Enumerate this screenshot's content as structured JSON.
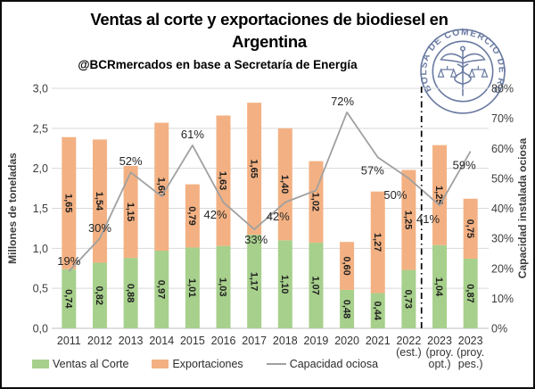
{
  "header": {
    "title_line1": "Ventas al corte y exportaciones de biodiesel en",
    "title_line2": "Argentina",
    "subtitle": "@BCRmercados en base a Secretaría de Energía"
  },
  "logo": {
    "ring_text": "BOLSA DE COMERCIO DE ROSARIO",
    "color": "#44598a"
  },
  "chart_data": {
    "type": "bar",
    "subtype": "stacked-bar-with-line",
    "categories": [
      [
        "2011"
      ],
      [
        "2012"
      ],
      [
        "2013"
      ],
      [
        "2014"
      ],
      [
        "2015"
      ],
      [
        "2016"
      ],
      [
        "2017"
      ],
      [
        "2018"
      ],
      [
        "2019"
      ],
      [
        "2020"
      ],
      [
        "2021"
      ],
      [
        "2022",
        "(est.)"
      ],
      [
        "2023",
        "(proy.",
        "opt.)"
      ],
      [
        "2023",
        "(proy.",
        "pes.)"
      ]
    ],
    "series": [
      {
        "name": "Ventas al Corte",
        "type": "bar",
        "color": "#a7d08c",
        "values": [
          0.74,
          0.82,
          0.88,
          0.97,
          1.01,
          1.03,
          1.17,
          1.1,
          1.07,
          0.48,
          0.44,
          0.73,
          1.04,
          0.87
        ],
        "labels": [
          "0,74",
          "0,82",
          "0,88",
          "0,97",
          "1,01",
          "1,03",
          "1,17",
          "1,10",
          "1,07",
          "0,48",
          "0,44",
          "0,73",
          "1,04",
          "0,87"
        ]
      },
      {
        "name": "Exportaciones",
        "type": "bar",
        "color": "#f3b183",
        "values": [
          1.65,
          1.54,
          1.15,
          1.6,
          0.79,
          1.63,
          1.65,
          1.4,
          1.02,
          0.6,
          1.27,
          1.25,
          1.25,
          0.75
        ],
        "labels": [
          "1,65",
          "1,54",
          "1,15",
          "1,60",
          "0,79",
          "1,63",
          "1,65",
          "1,40",
          "1,02",
          "0,60",
          "1,27",
          "1,25",
          "1,25",
          "0,75"
        ]
      },
      {
        "name": "Capacidad ociosa",
        "type": "line",
        "axis": "right",
        "color": "#a0a0a0",
        "values": [
          19,
          30,
          52,
          44,
          61,
          42,
          33,
          42,
          46,
          72,
          57,
          50,
          41,
          59
        ],
        "point_labels": [
          "19%",
          "30%",
          "52%",
          "",
          "61%",
          "42%",
          "33%",
          "42%",
          "",
          "72%",
          "57%",
          "50%",
          "41%",
          "59%"
        ],
        "label_offsets": [
          [
            0,
            -7
          ],
          [
            0,
            -7
          ],
          [
            0,
            -8
          ],
          null,
          [
            0,
            -8
          ],
          [
            -9,
            18
          ],
          [
            2,
            16
          ],
          [
            -8,
            20
          ],
          null,
          [
            -5,
            -8
          ],
          [
            -6,
            19
          ],
          [
            -15,
            23
          ],
          [
            -13,
            20
          ],
          [
            -7,
            20
          ]
        ]
      }
    ],
    "left_axis": {
      "title": "Millones de toneladas",
      "min": 0,
      "max": 3,
      "step": 0.5,
      "tick_labels": [
        "0,0",
        "0,5",
        "1,0",
        "1,5",
        "2,0",
        "2,5",
        "3,0"
      ]
    },
    "right_axis": {
      "title": "Capacidad instalada ociosa",
      "min": 0,
      "max": 80,
      "step": 10,
      "tick_labels": [
        "0%",
        "10%",
        "20%",
        "30%",
        "40%",
        "50%",
        "60%",
        "70%",
        "80%"
      ]
    },
    "grid": true,
    "legend_position": "bottom",
    "separator_after_index": 11,
    "colors": {
      "gridline": "#d9d9d9",
      "baseline": "#bfbfbf",
      "bar_label": "#1f1f1f",
      "pct_label": "#262626",
      "tick_label": "#3d3d3d",
      "separator": "#000000"
    }
  }
}
